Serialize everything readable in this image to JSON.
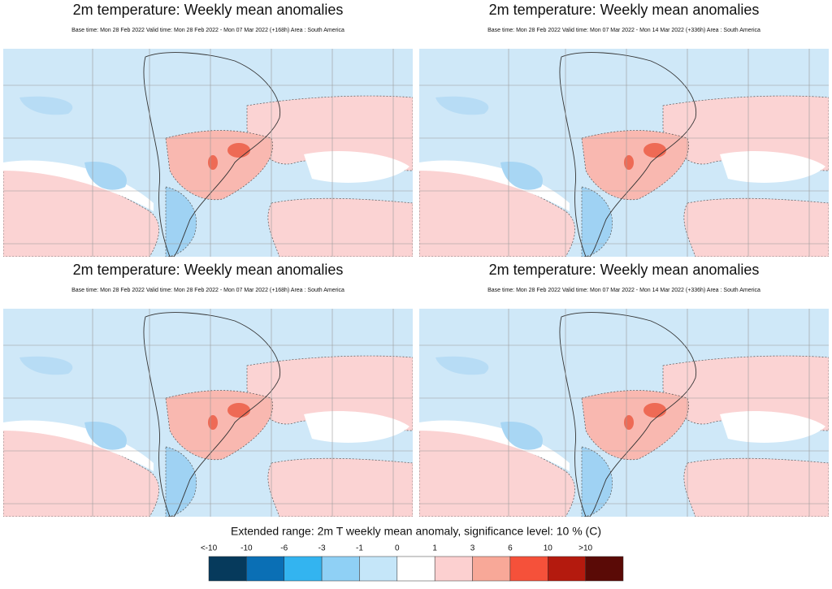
{
  "panels": [
    {
      "title": "2m temperature: Weekly mean anomalies",
      "subtitle": "Base time: Mon 28 Feb 2022 Valid time: Mon 28 Feb 2022 - Mon 07 Mar 2022 (+168h) Area : South America"
    },
    {
      "title": "2m temperature: Weekly mean anomalies",
      "subtitle": "Base time: Mon 28 Feb 2022 Valid time: Mon 07 Mar 2022 - Mon 14 Mar 2022 (+336h) Area : South America"
    },
    {
      "title": "2m temperature: Weekly mean anomalies",
      "subtitle": "Base time: Mon 28 Feb 2022 Valid time: Mon 28 Feb 2022 - Mon 07 Mar 2022 (+168h) Area : South America"
    },
    {
      "title": "2m temperature: Weekly mean anomalies",
      "subtitle": "Base time: Mon 28 Feb 2022 Valid time: Mon 07 Mar 2022 - Mon 14 Mar 2022 (+336h) Area : South America"
    }
  ],
  "legend": {
    "title": "Extended range: 2m T weekly mean anomaly, significance level: 10 % (C)",
    "labels": [
      "<-10",
      "-10",
      "-6",
      "-3",
      "-1",
      "0",
      "1",
      "3",
      "6",
      "10",
      ">10"
    ],
    "colors": [
      "#063a5c",
      "#0a6fb5",
      "#33b4f0",
      "#8fd0f5",
      "#c5e6f9",
      "#ffffff",
      "#fcd0d0",
      "#f8a898",
      "#f5513a",
      "#b41a0e",
      "#5a0a06"
    ]
  }
}
